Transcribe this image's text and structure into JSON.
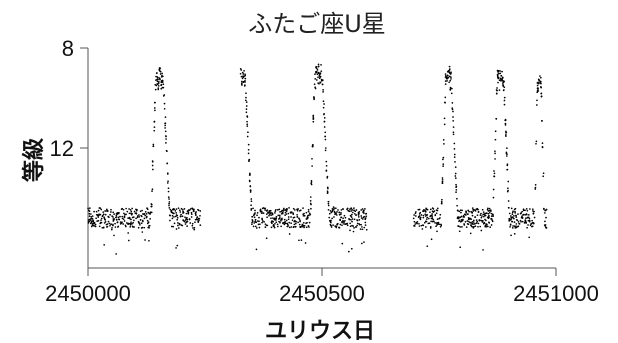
{
  "chart_data": {
    "type": "scatter",
    "title": "ふたご座U星",
    "xlabel": "ユリウス日",
    "ylabel": "等級",
    "xlim": [
      2450000,
      2451000
    ],
    "ylim": [
      8,
      16.8
    ],
    "y_inverted": true,
    "xticks": [
      2450000,
      2450500,
      2451000
    ],
    "xtick_labels": [
      "2450000",
      "2450500",
      "2451000"
    ],
    "yticks": [
      8,
      12
    ],
    "ytick_labels": [
      "8",
      "12"
    ],
    "grid": false,
    "marker_color": "#000000",
    "quiescent_magnitude": 14.8,
    "outbursts": [
      {
        "start": 2450135,
        "peak_start": 2450145,
        "peak_end": 2450160,
        "end": 2450175,
        "peak_mag": 9.0
      },
      {
        "start": 2450320,
        "peak_start": 2450320,
        "peak_end": 2450335,
        "end": 2450350,
        "peak_mag": 8.9
      },
      {
        "start": 2450475,
        "peak_start": 2450485,
        "peak_end": 2450500,
        "end": 2450515,
        "peak_mag": 8.9
      },
      {
        "start": 2450755,
        "peak_start": 2450765,
        "peak_end": 2450775,
        "end": 2450790,
        "peak_mag": 8.9
      },
      {
        "start": 2450865,
        "peak_start": 2450875,
        "peak_end": 2450888,
        "end": 2450900,
        "peak_mag": 9.0
      },
      {
        "start": 2450955,
        "peak_start": 2450960,
        "peak_end": 2450968,
        "end": 2450975,
        "peak_mag": 9.1
      }
    ],
    "observed_ranges": [
      [
        2450000,
        2450240
      ],
      [
        2450325,
        2450595
      ],
      [
        2450695,
        2450980
      ]
    ]
  }
}
